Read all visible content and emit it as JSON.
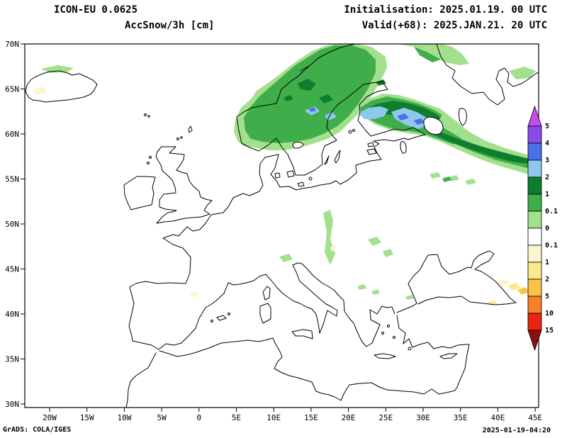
{
  "header": {
    "model": "ICON-EU 0.0625",
    "variable": "AccSnow/3h [cm]",
    "initialisation": "Initialisation: 2025.01.19. 00 UTC",
    "valid": "Valid(+68): 2025.JAN.21. 20 UTC"
  },
  "footer": {
    "credit": "GrADS: COLA/IGES",
    "timestamp": "2025-01-19-04:20"
  },
  "map": {
    "lat_ticks": [
      "70N",
      "65N",
      "60N",
      "55N",
      "50N",
      "45N",
      "40N",
      "35N",
      "30N"
    ],
    "lon_ticks": [
      "20W",
      "15W",
      "10W",
      "5W",
      "0",
      "5E",
      "10E",
      "15E",
      "20E",
      "25E",
      "30E",
      "35E",
      "40E",
      "45E"
    ]
  },
  "colorbar": {
    "labels": [
      "5",
      "4",
      "3",
      "2",
      "1",
      "0.1",
      "0",
      "0.1",
      "1",
      "2",
      "5",
      "10",
      "15"
    ],
    "arrow_top_color": "#c44df0",
    "arrow_bottom_color": "#8c0f0f",
    "segment_colors": [
      "#8a4be8",
      "#4a6fe8",
      "#8fc8ee",
      "#0e7d2e",
      "#3fae4a",
      "#a3e08e",
      "#ffffff",
      "#fdf5cd",
      "#fde88a",
      "#fcc24a",
      "#f87f2a",
      "#e8250f"
    ]
  }
}
